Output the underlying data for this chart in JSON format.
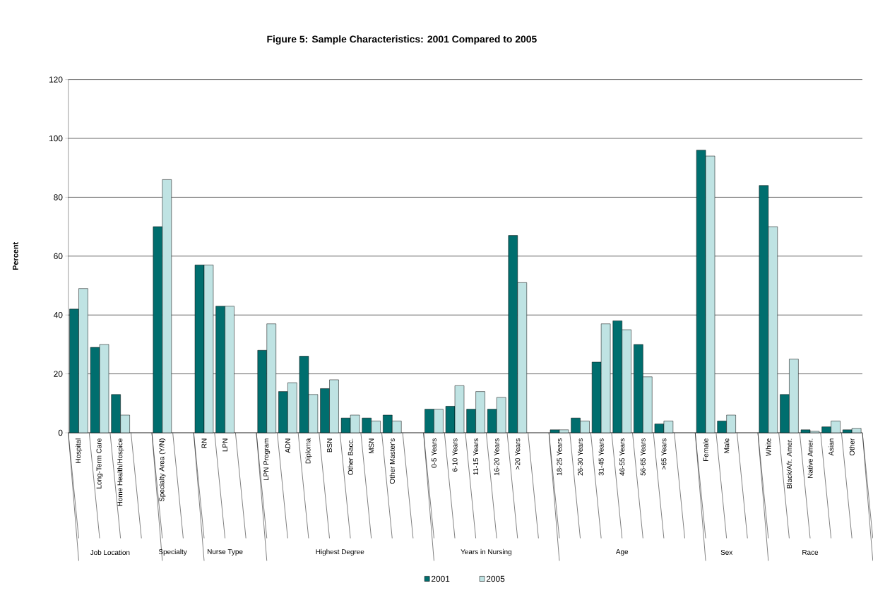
{
  "chart_data": {
    "type": "bar",
    "title": "Figure 5: Sample Characteristics: 2001 Compared to 2005",
    "ylabel": "Percent",
    "categories": [
      "Hospital",
      "Long-Term Care",
      "Home Health/Hospice",
      null,
      "Specialty Area (Y/N)",
      null,
      "RN",
      "LPN",
      null,
      "LPN Program",
      "ADN",
      "Diploma",
      "BSN",
      "Other Bacc.",
      "MSN",
      "Other Master's",
      null,
      "0-5 Years",
      "6-10 Years",
      "11-15 Years",
      "16-20 Years",
      ">20 Years",
      null,
      "18-25 Years",
      "26-30 Years",
      "31-45 Years",
      "46-55 Years",
      "56-65 Years",
      ">65 Years",
      null,
      "Female",
      "Male",
      null,
      "White",
      "Black/Afr. Amer.",
      "Native Amer.",
      "Asian",
      "Other"
    ],
    "series": [
      {
        "name": "2001",
        "color": "#006e6e",
        "values": [
          42,
          29,
          13,
          null,
          70,
          null,
          57,
          43,
          null,
          28,
          14,
          26,
          15,
          5,
          5,
          6,
          null,
          8,
          9,
          8,
          8,
          67,
          null,
          1,
          5,
          24,
          38,
          30,
          3,
          null,
          96,
          4,
          null,
          84,
          13,
          1,
          2,
          1
        ]
      },
      {
        "name": "2005",
        "color": "#bfe3e3",
        "values": [
          49,
          30,
          6,
          null,
          86,
          null,
          57,
          43,
          null,
          37,
          17,
          13,
          18,
          6,
          4,
          4,
          null,
          8,
          16,
          14,
          12,
          51,
          null,
          1,
          4,
          37,
          35,
          19,
          4,
          null,
          94,
          6,
          null,
          70,
          25,
          0.5,
          4,
          1.5
        ]
      }
    ],
    "annotations": [
      "Job Location",
      "Specialty",
      "Nurse Type",
      "Highest Degree",
      "Years in Nursing",
      "Age",
      "Sex",
      "Race"
    ],
    "ylim": [
      0,
      120
    ],
    "yticks": [
      0,
      20,
      40,
      60,
      80,
      100,
      120
    ],
    "grid": "y",
    "legend": "bottom"
  }
}
